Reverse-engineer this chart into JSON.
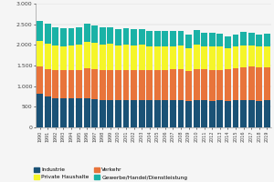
{
  "years": [
    1990,
    1991,
    1992,
    1993,
    1994,
    1995,
    1996,
    1997,
    1998,
    1999,
    2000,
    2001,
    2002,
    2003,
    2004,
    2005,
    2006,
    2007,
    2008,
    2009,
    2010,
    2011,
    2012,
    2013,
    2014,
    2015,
    2016,
    2017,
    2018,
    2019
  ],
  "Industrie": [
    820,
    750,
    710,
    700,
    700,
    700,
    710,
    690,
    670,
    670,
    670,
    670,
    665,
    660,
    665,
    660,
    655,
    665,
    660,
    645,
    665,
    665,
    650,
    660,
    645,
    655,
    665,
    660,
    645,
    655
  ],
  "Verkehr": [
    660,
    670,
    675,
    680,
    690,
    700,
    715,
    715,
    720,
    725,
    730,
    720,
    730,
    730,
    730,
    740,
    740,
    740,
    750,
    730,
    750,
    750,
    745,
    740,
    760,
    780,
    800,
    810,
    820,
    800
  ],
  "Private_Haushalte": [
    610,
    620,
    590,
    590,
    600,
    610,
    650,
    640,
    620,
    625,
    590,
    620,
    600,
    615,
    570,
    570,
    565,
    560,
    565,
    555,
    600,
    555,
    570,
    555,
    510,
    520,
    530,
    525,
    500,
    510
  ],
  "Gewerbe": [
    490,
    470,
    445,
    430,
    420,
    415,
    445,
    425,
    415,
    415,
    395,
    400,
    395,
    385,
    375,
    375,
    385,
    375,
    355,
    325,
    355,
    325,
    335,
    325,
    295,
    305,
    315,
    305,
    295,
    305
  ],
  "colors_industrie": "#1a5276",
  "colors_verkehr": "#e8743b",
  "colors_private": "#f5f529",
  "colors_gewerbe": "#1ab2a6",
  "legend_labels": [
    "Industrie",
    "Verkehr",
    "Private Haushalte",
    "Gewerbe/Handel/Dienstleistung"
  ],
  "ylim": [
    0,
    3000
  ],
  "yticks": [
    0,
    500,
    1000,
    1500,
    2000,
    2500,
    3000
  ],
  "background_color": "#f5f5f5",
  "bar_width": 0.8
}
